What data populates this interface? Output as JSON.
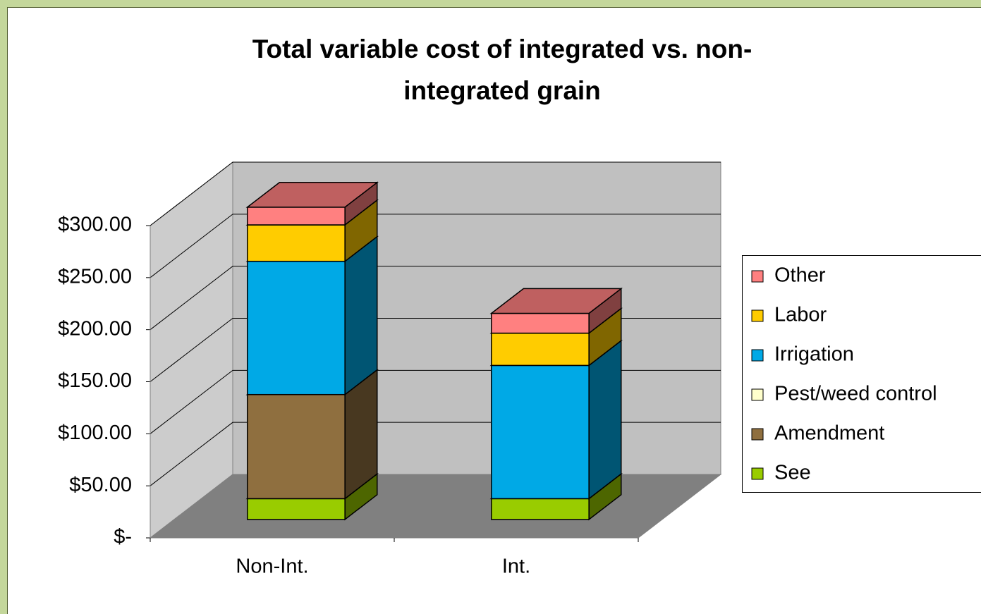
{
  "chart_data": {
    "type": "bar3d_stacked",
    "title": [
      "Total variable cost of integrated vs. non-",
      "integrated grain"
    ],
    "categories": [
      "Non-Int.",
      "Int."
    ],
    "series": [
      {
        "name": "See",
        "color": "#99cc00",
        "values": [
          20,
          20
        ]
      },
      {
        "name": "Amendment",
        "color": "#8f6f3f",
        "values": [
          100,
          0
        ]
      },
      {
        "name": "Pest/weed control",
        "color": "#ffffcc",
        "values": [
          0,
          0
        ]
      },
      {
        "name": "Irrigation",
        "color": "#00a9e6",
        "values": [
          128,
          128
        ]
      },
      {
        "name": "Labor",
        "color": "#ffcc00",
        "values": [
          35,
          31
        ]
      },
      {
        "name": "Other",
        "color": "#ff8080",
        "values": [
          17,
          19
        ]
      }
    ],
    "ylim": [
      0,
      300
    ],
    "yticks": [
      {
        "value": 0,
        "label": "$-"
      },
      {
        "value": 50,
        "label": "$50.00"
      },
      {
        "value": 100,
        "label": "$100.00"
      },
      {
        "value": 150,
        "label": "$150.00"
      },
      {
        "value": 200,
        "label": "$200.00"
      },
      {
        "value": 250,
        "label": "$250.00"
      },
      {
        "value": 300,
        "label": "$300.00"
      }
    ],
    "grid": true,
    "legend": "right"
  }
}
